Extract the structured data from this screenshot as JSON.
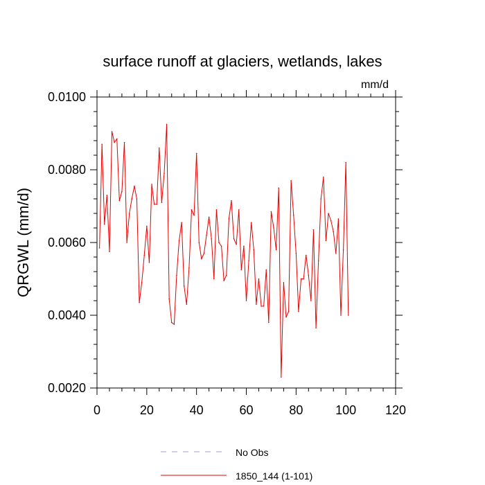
{
  "chart_data": {
    "type": "line",
    "title": "surface runoff at glaciers, wetlands, lakes",
    "units": "mm/d",
    "ylabel": "QRGWL  (mm/d)",
    "xlabel": "",
    "xlim": [
      0,
      120
    ],
    "ylim": [
      0.002,
      0.01
    ],
    "x_ticks": [
      0,
      20,
      40,
      60,
      80,
      100,
      120
    ],
    "x_tick_labels": [
      "0",
      "20",
      "40",
      "60",
      "80",
      "100",
      "120"
    ],
    "y_ticks": [
      0.002,
      0.004,
      0.006,
      0.008,
      0.01
    ],
    "y_tick_labels": [
      "0.0020",
      "0.0040",
      "0.0060",
      "0.0080",
      "0.0100"
    ],
    "grid": false,
    "legend_position": "bottom-center",
    "series": [
      {
        "name": "No Obs",
        "color": "#9a9af0",
        "line_style": "dashed",
        "x": [],
        "values": []
      },
      {
        "name": "1850_144 (1-101)",
        "color": "#e60000",
        "line_style": "solid",
        "x": [
          1,
          2,
          3,
          4,
          5,
          6,
          7,
          8,
          9,
          10,
          11,
          12,
          13,
          14,
          15,
          16,
          17,
          18,
          19,
          20,
          21,
          22,
          23,
          24,
          25,
          26,
          27,
          28,
          29,
          30,
          31,
          32,
          33,
          34,
          35,
          36,
          37,
          38,
          39,
          40,
          41,
          42,
          43,
          44,
          45,
          46,
          47,
          48,
          49,
          50,
          51,
          52,
          53,
          54,
          55,
          56,
          57,
          58,
          59,
          60,
          61,
          62,
          63,
          64,
          65,
          66,
          67,
          68,
          69,
          70,
          71,
          72,
          73,
          74,
          75,
          76,
          77,
          78,
          79,
          80,
          81,
          82,
          83,
          84,
          85,
          86,
          87,
          88,
          89,
          90,
          91,
          92,
          93,
          94,
          95,
          96,
          97,
          98,
          99,
          100,
          101
        ],
        "values": [
          0.00585,
          0.0087,
          0.0065,
          0.0073,
          0.00575,
          0.00905,
          0.00875,
          0.00885,
          0.00715,
          0.0074,
          0.00875,
          0.006,
          0.0068,
          0.0072,
          0.00755,
          0.0072,
          0.00435,
          0.0049,
          0.00565,
          0.00645,
          0.00545,
          0.0076,
          0.00705,
          0.00705,
          0.0086,
          0.0071,
          0.0079,
          0.00925,
          0.00445,
          0.0038,
          0.00375,
          0.0051,
          0.00605,
          0.00655,
          0.0048,
          0.0043,
          0.0053,
          0.0069,
          0.00675,
          0.00845,
          0.006,
          0.00555,
          0.0057,
          0.0062,
          0.0067,
          0.0061,
          0.005,
          0.0069,
          0.006,
          0.0059,
          0.00495,
          0.0051,
          0.00665,
          0.00715,
          0.0061,
          0.00595,
          0.0069,
          0.00525,
          0.0059,
          0.0044,
          0.0055,
          0.00655,
          0.0058,
          0.0043,
          0.005,
          0.00425,
          0.00425,
          0.00525,
          0.0038,
          0.00685,
          0.0064,
          0.0058,
          0.0075,
          0.0023,
          0.0049,
          0.00395,
          0.0041,
          0.0077,
          0.00675,
          0.0057,
          0.0041,
          0.005,
          0.005,
          0.00565,
          0.0051,
          0.0044,
          0.00635,
          0.00365,
          0.0055,
          0.0072,
          0.0078,
          0.00605,
          0.0068,
          0.0066,
          0.0063,
          0.0057,
          0.00665,
          0.004,
          0.0058,
          0.0082,
          0.004
        ]
      }
    ]
  }
}
